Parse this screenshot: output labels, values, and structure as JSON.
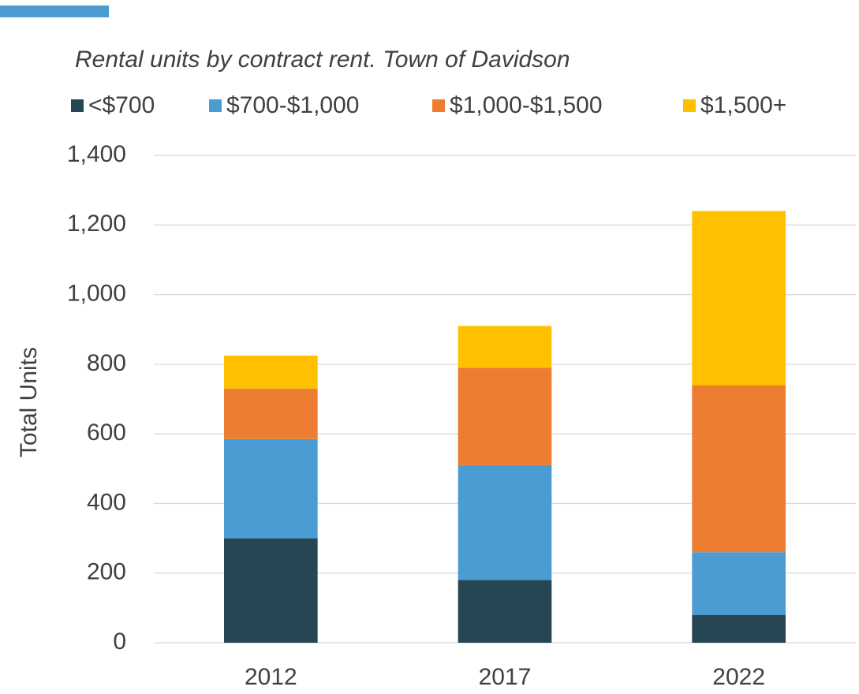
{
  "chart_data": {
    "type": "stacked-bar",
    "title": "Rental units by contract rent. Town of Davidson",
    "y_label": "Total Units",
    "categories": [
      "2012",
      "2017",
      "2022"
    ],
    "series": [
      {
        "name": "<$700",
        "color": "#264653",
        "values": [
          300,
          180,
          80
        ]
      },
      {
        "name": "$700-$1,000",
        "color": "#4b9cd3",
        "values": [
          285,
          330,
          180
        ]
      },
      {
        "name": "$1,000-$1,500",
        "color": "#ed7d31",
        "values": [
          145,
          280,
          480
        ]
      },
      {
        "name": "$1,500+",
        "color": "#ffc000",
        "values": [
          95,
          120,
          500
        ]
      }
    ],
    "ylim": [
      0,
      1400
    ],
    "yticks": [
      0,
      200,
      400,
      600,
      800,
      {
        "value": 1000,
        "label": "1,000"
      },
      {
        "value": 1200,
        "label": "1,200"
      },
      {
        "value": 1400,
        "label": "1,400"
      }
    ],
    "grid": true,
    "legend": "top"
  }
}
